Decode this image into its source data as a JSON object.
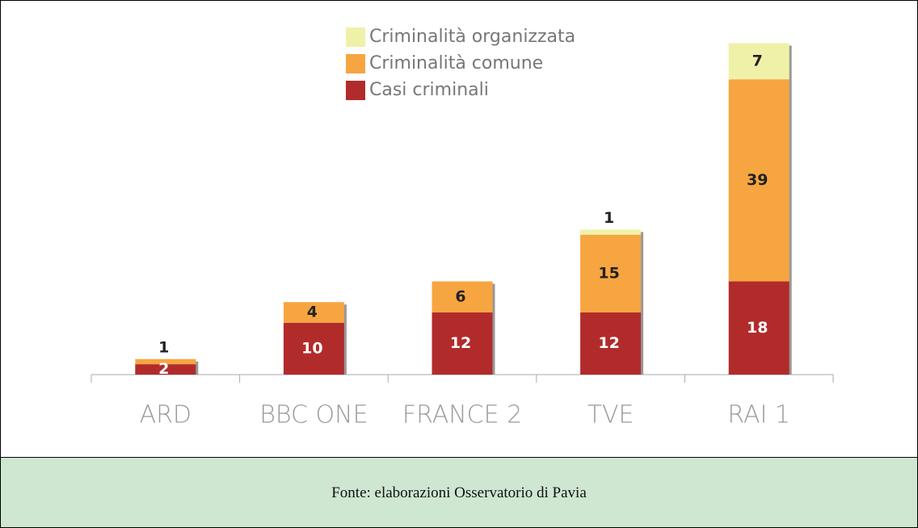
{
  "chart_data": {
    "type": "bar",
    "stacked": true,
    "categories": [
      "ARD",
      "BBC ONE",
      "FRANCE 2",
      "TVE",
      "RAI 1"
    ],
    "series": [
      {
        "name": "Casi criminali",
        "color": "#b22b2b",
        "values": [
          2,
          10,
          12,
          12,
          18
        ]
      },
      {
        "name": "Criminalità comune",
        "color": "#f7a541",
        "values": [
          1,
          4,
          6,
          15,
          39
        ]
      },
      {
        "name": "Criminalità organizzata",
        "color": "#eff1a9",
        "values": [
          null,
          null,
          null,
          1,
          7
        ]
      }
    ],
    "ylim": [
      0,
      70
    ],
    "grid": false,
    "legend": "top"
  },
  "footer": {
    "text": "Fonte: elaborazioni Osservatorio di Pavia"
  }
}
